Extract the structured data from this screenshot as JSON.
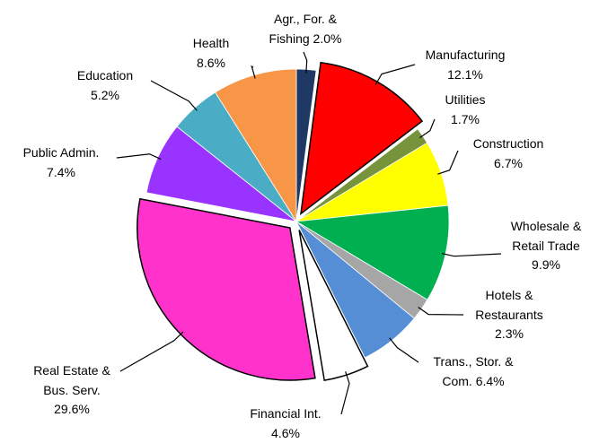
{
  "chart_data": {
    "type": "pie",
    "categories": [
      "Agr., For. & Fishing",
      "Manufacturing",
      "Utilities",
      "Construction",
      "Wholesale & Retail Trade",
      "Hotels & Restaurants",
      "Trans., Stor. & Com.",
      "Financial Int.",
      "Real Estate & Bus. Serv.",
      "Public Admin.",
      "Education",
      "Health"
    ],
    "values": [
      2.0,
      12.1,
      1.7,
      6.7,
      9.9,
      2.3,
      6.4,
      4.6,
      29.6,
      7.4,
      5.2,
      8.6
    ],
    "value_labels": [
      "2.0%",
      "12.1%",
      "1.7%",
      "6.7%",
      "9.9%",
      "2.3%",
      "6.4%",
      "4.6%",
      "29.6%",
      "7.4%",
      "5.2%",
      "8.6%"
    ],
    "colors": [
      "#1f3864",
      "#ff0000",
      "#77933c",
      "#ffff00",
      "#00b050",
      "#a6a6a6",
      "#558ed5",
      "#ffffff",
      "#ff33cc",
      "#9933ff",
      "#4bacc6",
      "#f79646"
    ],
    "exploded": [
      "Manufacturing",
      "Financial Int.",
      "Real Estate & Bus. Serv."
    ]
  }
}
